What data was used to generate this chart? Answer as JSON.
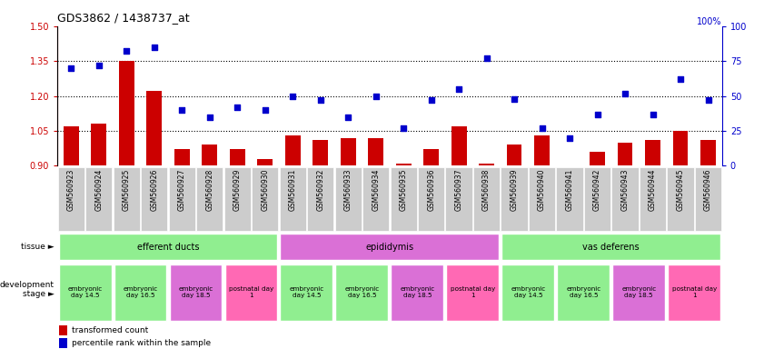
{
  "title": "GDS3862 / 1438737_at",
  "samples": [
    "GSM560923",
    "GSM560924",
    "GSM560925",
    "GSM560926",
    "GSM560927",
    "GSM560928",
    "GSM560929",
    "GSM560930",
    "GSM560931",
    "GSM560932",
    "GSM560933",
    "GSM560934",
    "GSM560935",
    "GSM560936",
    "GSM560937",
    "GSM560938",
    "GSM560939",
    "GSM560940",
    "GSM560941",
    "GSM560942",
    "GSM560943",
    "GSM560944",
    "GSM560945",
    "GSM560946"
  ],
  "bar_values": [
    1.07,
    1.08,
    1.35,
    1.22,
    0.97,
    0.99,
    0.97,
    0.93,
    1.03,
    1.01,
    1.02,
    1.02,
    0.91,
    0.97,
    1.07,
    0.91,
    0.99,
    1.03,
    0.9,
    0.96,
    1.0,
    1.01,
    1.05,
    1.01
  ],
  "scatter_values": [
    70,
    72,
    82,
    85,
    40,
    35,
    42,
    40,
    50,
    47,
    35,
    50,
    27,
    47,
    55,
    77,
    48,
    27,
    20,
    37,
    52,
    37,
    62,
    47
  ],
  "ylim_left": [
    0.9,
    1.5
  ],
  "ylim_right": [
    0,
    100
  ],
  "yticks_left": [
    0.9,
    1.05,
    1.2,
    1.35,
    1.5
  ],
  "yticks_right": [
    0,
    25,
    50,
    75,
    100
  ],
  "hlines": [
    1.05,
    1.2,
    1.35
  ],
  "tissue_groups": [
    {
      "label": "efferent ducts",
      "start": 0,
      "end": 8,
      "color": "#90EE90"
    },
    {
      "label": "epididymis",
      "start": 8,
      "end": 16,
      "color": "#DA70D6"
    },
    {
      "label": "vas deferens",
      "start": 16,
      "end": 24,
      "color": "#90EE90"
    }
  ],
  "dev_stage_groups": [
    {
      "label": "embryonic\nday 14.5",
      "start": 0,
      "end": 2,
      "color": "#90EE90"
    },
    {
      "label": "embryonic\nday 16.5",
      "start": 2,
      "end": 4,
      "color": "#90EE90"
    },
    {
      "label": "embryonic\nday 18.5",
      "start": 4,
      "end": 6,
      "color": "#DA70D6"
    },
    {
      "label": "postnatal day\n1",
      "start": 6,
      "end": 8,
      "color": "#FF69B4"
    },
    {
      "label": "embryonic\nday 14.5",
      "start": 8,
      "end": 10,
      "color": "#90EE90"
    },
    {
      "label": "embryonic\nday 16.5",
      "start": 10,
      "end": 12,
      "color": "#90EE90"
    },
    {
      "label": "embryonic\nday 18.5",
      "start": 12,
      "end": 14,
      "color": "#DA70D6"
    },
    {
      "label": "postnatal day\n1",
      "start": 14,
      "end": 16,
      "color": "#FF69B4"
    },
    {
      "label": "embryonic\nday 14.5",
      "start": 16,
      "end": 18,
      "color": "#90EE90"
    },
    {
      "label": "embryonic\nday 16.5",
      "start": 18,
      "end": 20,
      "color": "#90EE90"
    },
    {
      "label": "embryonic\nday 18.5",
      "start": 20,
      "end": 22,
      "color": "#DA70D6"
    },
    {
      "label": "postnatal day\n1",
      "start": 22,
      "end": 24,
      "color": "#FF69B4"
    }
  ],
  "bar_color": "#CC0000",
  "scatter_color": "#0000CC",
  "background_color": "#ffffff",
  "legend_bar_label": "transformed count",
  "legend_scatter_label": "percentile rank within the sample",
  "bar_width": 0.55,
  "bar_baseline": 0.9,
  "xtick_bg_color": "#CCCCCC"
}
